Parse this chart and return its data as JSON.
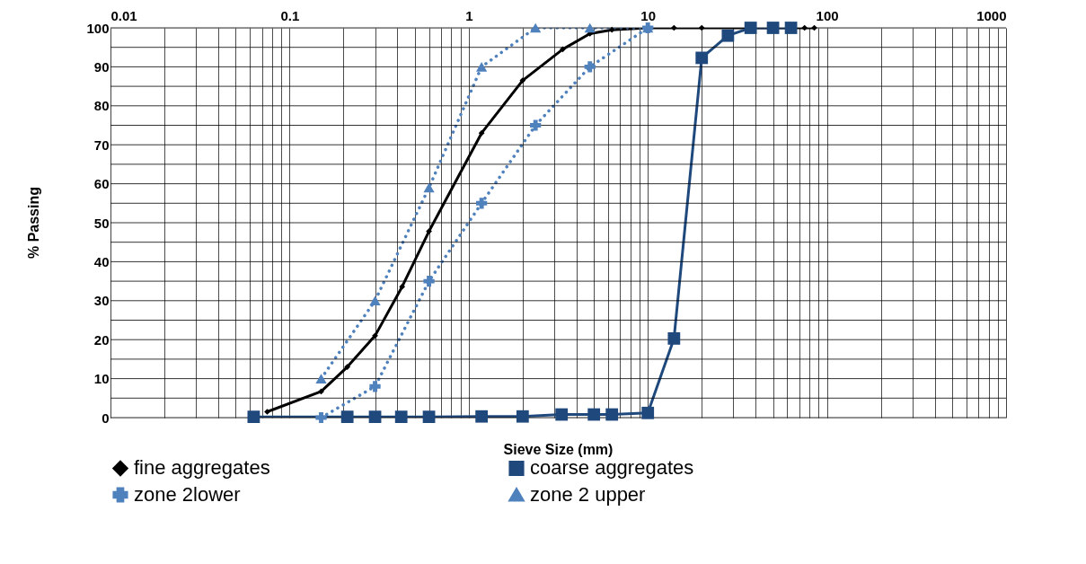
{
  "chart_data": {
    "type": "line",
    "xlabel": "Sieve Size (mm)",
    "ylabel": "% Passing",
    "log": "x",
    "grid": true,
    "legend": "bottom",
    "xlim": [
      0.01,
      1000
    ],
    "xticks": [
      0.01,
      {
        "value": 0.02,
        "label": null
      },
      {
        "value": 0.03,
        "label": null
      },
      {
        "value": 0.04,
        "label": null
      },
      {
        "value": 0.05,
        "label": null
      },
      {
        "value": 0.06,
        "label": null
      },
      {
        "value": 0.07,
        "label": null
      },
      {
        "value": 0.08,
        "label": null
      },
      {
        "value": 0.09,
        "label": null
      },
      0.1,
      {
        "value": 0.2,
        "label": null
      },
      {
        "value": 0.3,
        "label": null
      },
      {
        "value": 0.4,
        "label": null
      },
      {
        "value": 0.5,
        "label": null
      },
      {
        "value": 0.6,
        "label": null
      },
      {
        "value": 0.7,
        "label": null
      },
      {
        "value": 0.8,
        "label": null
      },
      {
        "value": 0.9,
        "label": null
      },
      1,
      {
        "value": 2,
        "label": null
      },
      {
        "value": 3,
        "label": null
      },
      {
        "value": 4,
        "label": null
      },
      {
        "value": 5,
        "label": null
      },
      {
        "value": 6,
        "label": null
      },
      {
        "value": 7,
        "label": null
      },
      {
        "value": 8,
        "label": null
      },
      {
        "value": 9,
        "label": null
      },
      10,
      {
        "value": 20,
        "label": null
      },
      {
        "value": 30,
        "label": null
      },
      {
        "value": 40,
        "label": null
      },
      {
        "value": 50,
        "label": null
      },
      {
        "value": 60,
        "label": null
      },
      {
        "value": 70,
        "label": null
      },
      {
        "value": 80,
        "label": null
      },
      {
        "value": 90,
        "label": null
      },
      100,
      {
        "value": 200,
        "label": null
      },
      {
        "value": 300,
        "label": null
      },
      {
        "value": 400,
        "label": null
      },
      {
        "value": 500,
        "label": null
      },
      {
        "value": 600,
        "label": null
      },
      {
        "value": 700,
        "label": null
      },
      {
        "value": 800,
        "label": null
      },
      {
        "value": 900,
        "label": null
      },
      1000
    ],
    "ylim": [
      0,
      100
    ],
    "yticks": [
      0,
      {
        "value": 5,
        "label": null
      },
      10,
      {
        "value": 15,
        "label": null
      },
      20,
      {
        "value": 25,
        "label": null
      },
      30,
      {
        "value": 35,
        "label": null
      },
      40,
      {
        "value": 45,
        "label": null
      },
      50,
      {
        "value": 55,
        "label": null
      },
      60,
      {
        "value": 65,
        "label": null
      },
      70,
      {
        "value": 75,
        "label": null
      },
      80,
      {
        "value": 85,
        "label": null
      },
      90,
      {
        "value": 95,
        "label": null
      },
      100
    ],
    "series": [
      {
        "name": "fine aggregates",
        "color": "#000000",
        "marker": "diamond",
        "line_style": "solid",
        "x": [
          0.075,
          0.15,
          0.21,
          0.3,
          0.425,
          0.6,
          1.18,
          2.0,
          3.35,
          4.75,
          6.3,
          10,
          14,
          20,
          75,
          85
        ],
        "values": [
          1.5,
          6.7,
          13,
          21,
          33.6,
          47.8,
          73,
          86.5,
          94.5,
          98.5,
          99.5,
          100,
          100,
          100,
          100,
          100
        ]
      },
      {
        "name": "coarse aggregates",
        "color": "#1f497d",
        "marker": "square",
        "line_style": "solid",
        "x": [
          0.063,
          0.21,
          0.3,
          0.42,
          0.6,
          1.18,
          2.0,
          3.3,
          5,
          6.3,
          10,
          14,
          20,
          28,
          37.5,
          50,
          63
        ],
        "values": [
          0.2,
          0.2,
          0.2,
          0.2,
          0.2,
          0.3,
          0.3,
          0.8,
          0.8,
          0.8,
          1.2,
          20.3,
          92.3,
          98,
          100,
          100,
          100
        ]
      },
      {
        "name": "zone 2lower",
        "color": "#4f81bd",
        "marker": "cross",
        "line_style": "dotted",
        "x": [
          0.15,
          0.3,
          0.6,
          1.18,
          2.36,
          4.75,
          10
        ],
        "values": [
          0,
          8,
          35,
          55,
          75,
          90,
          100
        ]
      },
      {
        "name": "zone 2 upper",
        "color": "#4f81bd",
        "marker": "triangle",
        "line_style": "dotted",
        "x": [
          0.15,
          0.3,
          0.6,
          1.18,
          2.36,
          4.75,
          10
        ],
        "values": [
          10,
          30,
          59,
          90,
          100,
          100,
          100
        ]
      }
    ]
  }
}
